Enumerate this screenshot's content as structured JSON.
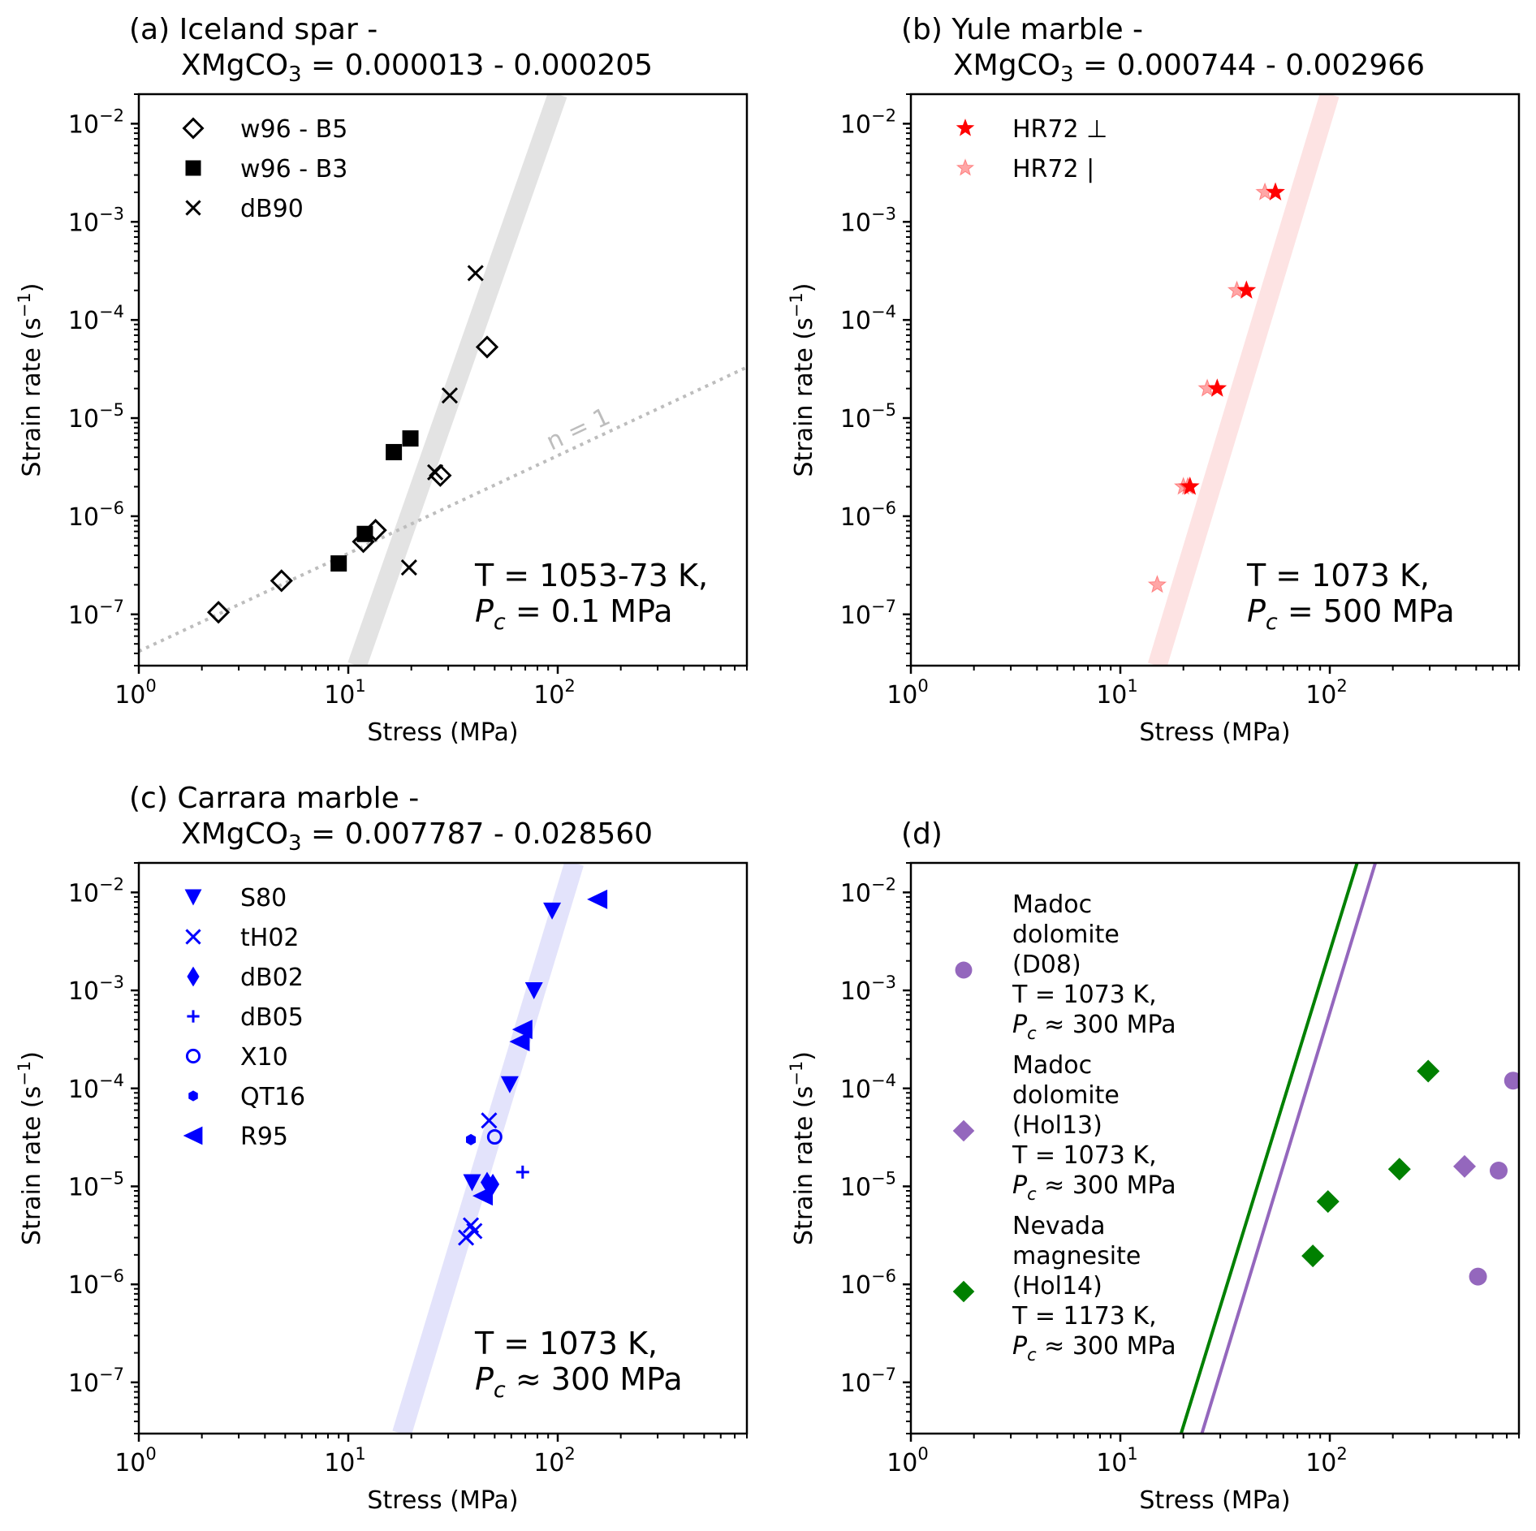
{
  "chart_data": [
    {
      "type": "scatter",
      "panel": "a",
      "title_line1": "(a) Iceland spar -",
      "title_line2_prefix": "XMgCO",
      "title_line2_sub": "3",
      "title_line2_suffix": " = 0.000013 - 0.000205",
      "xlabel": "Stress (MPa)",
      "ylabel": "Strain rate (s",
      "ylabel_sup": "−1",
      "ylabel_end": ")",
      "xscale": "log",
      "yscale": "log",
      "xlim": [
        1,
        800
      ],
      "ylim": [
        3e-08,
        0.02
      ],
      "xticks": [
        {
          "exp": "0"
        },
        {
          "exp": "1"
        },
        {
          "exp": "2"
        }
      ],
      "yticks": [
        {
          "exp": "−2"
        },
        {
          "exp": "−3"
        },
        {
          "exp": "−4"
        },
        {
          "exp": "−5"
        },
        {
          "exp": "−6"
        },
        {
          "exp": "−7"
        }
      ],
      "legend_position": "top-left",
      "annotation_line1": "T = 1053-73 K,",
      "annotation_line2_pre": "P",
      "annotation_line2_sub": "c",
      "annotation_line2_post": " = 0.1 MPa",
      "band": {
        "color": "#e3e3e3",
        "x_at_ymin": 11,
        "x_at_ymax": 100,
        "n_label": ""
      },
      "reference_line": {
        "label": "n = 1",
        "style": "dotted",
        "color": "#bdbdbd",
        "points": [
          [
            1,
            4.2e-08
          ],
          [
            800,
            3.3e-05
          ]
        ]
      },
      "series": [
        {
          "name": "w96 - B5",
          "marker": "diamond-open",
          "color": "#000000",
          "points": [
            [
              2.4,
              1.05e-07
            ],
            [
              4.8,
              2.2e-07
            ],
            [
              11.8,
              5.5e-07
            ],
            [
              13.5,
              7.2e-07
            ],
            [
              27.5,
              2.6e-06
            ],
            [
              46,
              5.3e-05
            ]
          ]
        },
        {
          "name": "w96 - B3",
          "marker": "square",
          "color": "#000000",
          "points": [
            [
              9.0,
              3.3e-07
            ],
            [
              12.0,
              6.6e-07
            ],
            [
              16.5,
              4.5e-06
            ],
            [
              19.8,
              6.2e-06
            ]
          ]
        },
        {
          "name": "dB90",
          "marker": "x",
          "color": "#000000",
          "points": [
            [
              19.5,
              3e-07
            ],
            [
              26,
              2.8e-06
            ],
            [
              30.5,
              1.7e-05
            ],
            [
              40.5,
              0.0003
            ]
          ]
        }
      ]
    },
    {
      "type": "scatter",
      "panel": "b",
      "title_line1": "(b) Yule marble -",
      "title_line2_prefix": "XMgCO",
      "title_line2_sub": "3",
      "title_line2_suffix": " = 0.000744 - 0.002966",
      "xlabel": "Stress (MPa)",
      "ylabel": "Strain rate (s",
      "ylabel_sup": "−1",
      "ylabel_end": ")",
      "xscale": "log",
      "yscale": "log",
      "xlim": [
        1,
        800
      ],
      "ylim": [
        3e-08,
        0.02
      ],
      "xticks": [
        {
          "exp": "0"
        },
        {
          "exp": "1"
        },
        {
          "exp": "2"
        }
      ],
      "yticks": [
        {
          "exp": "−2"
        },
        {
          "exp": "−3"
        },
        {
          "exp": "−4"
        },
        {
          "exp": "−5"
        },
        {
          "exp": "−6"
        },
        {
          "exp": "−7"
        }
      ],
      "legend_position": "top-left",
      "annotation_line1": "T = 1073 K,",
      "annotation_line2_pre": "P",
      "annotation_line2_sub": "c",
      "annotation_line2_post": " = 500 MPa",
      "band": {
        "color": "#fde3e3",
        "x_at_ymin": 15,
        "x_at_ymax": 100
      },
      "series": [
        {
          "name": "HR72 ⊥",
          "marker": "star",
          "color": "#ff0000",
          "alpha": 1.0,
          "points": [
            [
              21.5,
              2e-06
            ],
            [
              29,
              2e-05
            ],
            [
              40,
              0.0002
            ],
            [
              55,
              0.002
            ]
          ]
        },
        {
          "name": "HR72 |",
          "marker": "star",
          "color": "#ff0000",
          "alpha": 0.35,
          "points": [
            [
              15,
              2e-07
            ],
            [
              20,
              2e-06
            ],
            [
              21,
              2e-06
            ],
            [
              26,
              2e-05
            ],
            [
              36,
              0.0002
            ],
            [
              49,
              0.002
            ]
          ]
        }
      ]
    },
    {
      "type": "scatter",
      "panel": "c",
      "title_line1": "(c) Carrara marble -",
      "title_line2_prefix": "XMgCO",
      "title_line2_sub": "3",
      "title_line2_suffix": " = 0.007787 - 0.028560",
      "xlabel": "Stress (MPa)",
      "ylabel": "Strain rate (s",
      "ylabel_sup": "−1",
      "ylabel_end": ")",
      "xscale": "log",
      "yscale": "log",
      "xlim": [
        1,
        800
      ],
      "ylim": [
        3e-08,
        0.02
      ],
      "xticks": [
        {
          "exp": "0"
        },
        {
          "exp": "1"
        },
        {
          "exp": "2"
        }
      ],
      "yticks": [
        {
          "exp": "−2"
        },
        {
          "exp": "−3"
        },
        {
          "exp": "−4"
        },
        {
          "exp": "−5"
        },
        {
          "exp": "−6"
        },
        {
          "exp": "−7"
        }
      ],
      "legend_position": "top-left",
      "annotation_line1": "T = 1073 K,",
      "annotation_line2_pre": "P",
      "annotation_line2_sub": "c",
      "annotation_line2_post": " ≈  300 MPa",
      "band": {
        "color": "#e3e3fb",
        "x_at_ymin": 18,
        "x_at_ymax": 120
      },
      "series": [
        {
          "name": "S80",
          "marker": "triangle-down",
          "color": "#0000ff",
          "points": [
            [
              39,
              1.1e-05
            ],
            [
              59,
              0.00011
            ],
            [
              77,
              0.001
            ],
            [
              94,
              0.0065
            ]
          ]
        },
        {
          "name": "tH02",
          "marker": "x",
          "color": "#0000ff",
          "points": [
            [
              36.5,
              3e-06
            ],
            [
              38.5,
              4e-06
            ],
            [
              40,
              3.5e-06
            ],
            [
              47,
              4.7e-05
            ]
          ]
        },
        {
          "name": "dB02",
          "marker": "thin-diamond",
          "color": "#0000ff",
          "points": [
            [
              46,
              1.1e-05
            ],
            [
              49,
              1.05e-05
            ]
          ]
        },
        {
          "name": "dB05",
          "marker": "plus",
          "color": "#0000ff",
          "points": [
            [
              68,
              1.4e-05
            ]
          ]
        },
        {
          "name": "X10",
          "marker": "circle-open",
          "color": "#0000ff",
          "points": [
            [
              50,
              3.2e-05
            ]
          ]
        },
        {
          "name": "QT16",
          "marker": "hexagon",
          "color": "#0000ff",
          "points": [
            [
              38.5,
              3e-05
            ]
          ]
        },
        {
          "name": "R95",
          "marker": "triangle-left",
          "color": "#0000ff",
          "points": [
            [
              44,
              8e-06
            ],
            [
              66,
              0.0003
            ],
            [
              68,
              0.0004
            ],
            [
              155,
              0.0085
            ]
          ]
        }
      ]
    },
    {
      "type": "scatter",
      "panel": "d",
      "title_line1": "(d)",
      "xlabel": "Stress (MPa)",
      "ylabel": "Strain rate (s",
      "ylabel_sup": "−1",
      "ylabel_end": ")",
      "xscale": "log",
      "yscale": "log",
      "xlim": [
        1,
        800
      ],
      "ylim": [
        3e-08,
        0.02
      ],
      "xticks": [
        {
          "exp": "0"
        },
        {
          "exp": "1"
        },
        {
          "exp": "2"
        }
      ],
      "yticks": [
        {
          "exp": "−2"
        },
        {
          "exp": "−3"
        },
        {
          "exp": "−4"
        },
        {
          "exp": "−5"
        },
        {
          "exp": "−6"
        },
        {
          "exp": "−7"
        }
      ],
      "legend_position": "left",
      "lines": [
        {
          "color": "#008000",
          "points": [
            [
              19.5,
              3e-08
            ],
            [
              135,
              0.02
            ]
          ]
        },
        {
          "color": "#9467bd",
          "points": [
            [
              24.5,
              3e-08
            ],
            [
              165,
              0.02
            ]
          ]
        }
      ],
      "series": [
        {
          "name_lines": [
            "Madoc",
            "dolomite",
            "(D08)",
            " T = 1073 K,",
            "Pc ≈ 300 MPa"
          ],
          "name": "Madoc dolomite (D08) T = 1073 K, Pc ≈ 300 MPa",
          "marker": "circle",
          "color": "#9467bd",
          "points": [
            [
              510,
              1.2e-06
            ],
            [
              640,
              1.45e-05
            ],
            [
              750,
              0.00012
            ]
          ]
        },
        {
          "name_lines": [
            "Madoc",
            "dolomite",
            "(Hol13)",
            " T = 1073 K,",
            "Pc ≈ 300 MPa"
          ],
          "name": "Madoc dolomite (Hol13) T = 1073 K, Pc ≈ 300 MPa",
          "marker": "diamond",
          "color": "#9467bd",
          "points": [
            [
              440,
              1.6e-05
            ]
          ]
        },
        {
          "name_lines": [
            "Nevada",
            "magnesite",
            "(Hol14)",
            " T = 1173 K,",
            "Pc ≈ 300 MPa"
          ],
          "name": "Nevada magnesite (Hol14) T = 1173 K, Pc ≈ 300 MPa",
          "marker": "diamond",
          "color": "#008000",
          "points": [
            [
              83,
              1.95e-06
            ],
            [
              98,
              7e-06
            ],
            [
              215,
              1.5e-05
            ],
            [
              295,
              0.00015
            ]
          ]
        }
      ]
    }
  ]
}
